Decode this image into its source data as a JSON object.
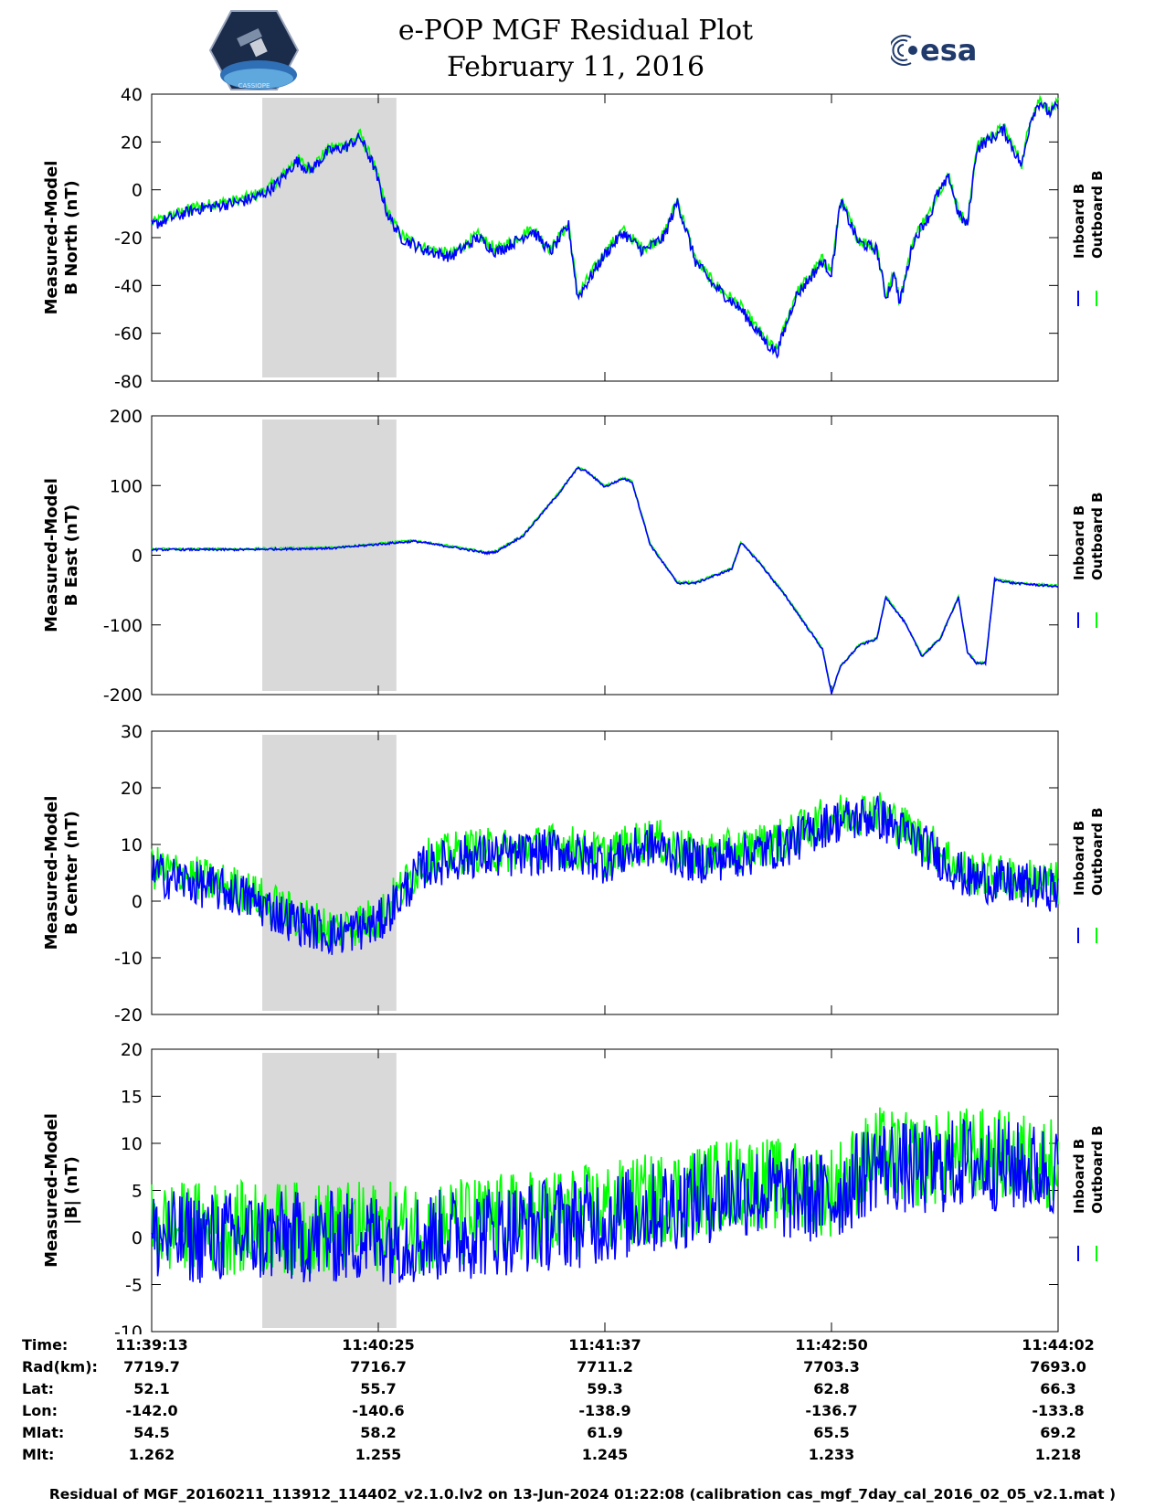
{
  "header": {
    "title": "e-POP MGF Residual Plot",
    "date": "February 11, 2016",
    "logo_left_text": "CASSIOPE",
    "logo_right_text": "esa"
  },
  "colors": {
    "inboard": "#0000ff",
    "outboard": "#00ff00",
    "shade": "#d9d9d9"
  },
  "chart_data": [
    {
      "type": "line",
      "ylabel": [
        "Measured-Model",
        "B North (nT)"
      ],
      "ylim": [
        -80,
        40
      ],
      "yticks": [
        40,
        20,
        0,
        -20,
        -40,
        -60,
        -80
      ],
      "legend": [
        "Inboard B",
        "Outboard B"
      ],
      "legend_placement": "right",
      "shaded_x_range": [
        0.122,
        0.27
      ],
      "noise_amplitude": 2.5,
      "series_x": [
        0,
        0.02,
        0.05,
        0.1,
        0.122,
        0.14,
        0.16,
        0.175,
        0.195,
        0.215,
        0.23,
        0.245,
        0.26,
        0.275,
        0.3,
        0.33,
        0.36,
        0.38,
        0.4,
        0.42,
        0.44,
        0.46,
        0.47,
        0.5,
        0.52,
        0.54,
        0.545,
        0.565,
        0.58,
        0.6,
        0.62,
        0.65,
        0.66,
        0.67,
        0.68,
        0.69,
        0.71,
        0.74,
        0.75,
        0.76,
        0.78,
        0.8,
        0.81,
        0.82,
        0.825,
        0.84,
        0.85,
        0.86,
        0.865,
        0.88,
        0.89,
        0.9,
        0.91,
        0.92,
        0.94,
        0.96,
        0.97,
        0.98,
        0.99,
        1.0
      ],
      "series": [
        {
          "name": "Inboard B",
          "values": [
            -15,
            -12,
            -8,
            -5,
            -2,
            3,
            12,
            8,
            16,
            18,
            22,
            10,
            -10,
            -20,
            -25,
            -28,
            -20,
            -26,
            -22,
            -17,
            -26,
            -15,
            -45,
            -27,
            -18,
            -25,
            -25,
            -20,
            -5,
            -30,
            -40,
            -50,
            -55,
            -60,
            -65,
            -68,
            -45,
            -30,
            -35,
            -5,
            -22,
            -25,
            -45,
            -35,
            -48,
            -22,
            -15,
            -10,
            -3,
            5,
            -10,
            -15,
            17,
            20,
            25,
            10,
            30,
            37,
            32,
            35
          ]
        },
        {
          "name": "Outboard B",
          "values": [
            -14,
            -11,
            -7,
            -4,
            -1,
            4,
            13,
            9,
            17,
            19,
            23,
            11,
            -9,
            -19,
            -24,
            -27,
            -19,
            -25,
            -21,
            -16,
            -25,
            -14,
            -44,
            -26,
            -17,
            -24,
            -24,
            -19,
            -4,
            -29,
            -39,
            -49,
            -54,
            -59,
            -64,
            -67,
            -44,
            -29,
            -34,
            -4,
            -21,
            -24,
            -44,
            -34,
            -47,
            -21,
            -14,
            -9,
            -2,
            6,
            -9,
            -14,
            18,
            21,
            26,
            11,
            31,
            38,
            33,
            36
          ]
        }
      ]
    },
    {
      "type": "line",
      "ylabel": [
        "Measured-Model",
        "B East (nT)"
      ],
      "ylim": [
        -200,
        200
      ],
      "yticks": [
        200,
        100,
        0,
        -100,
        -200
      ],
      "legend": [
        "Inboard B",
        "Outboard B"
      ],
      "legend_placement": "right",
      "shaded_x_range": [
        0.122,
        0.27
      ],
      "noise_amplitude": 1.5,
      "series_x": [
        0,
        0.1,
        0.2,
        0.27,
        0.29,
        0.33,
        0.37,
        0.38,
        0.41,
        0.45,
        0.47,
        0.48,
        0.5,
        0.52,
        0.53,
        0.55,
        0.58,
        0.6,
        0.64,
        0.65,
        0.67,
        0.7,
        0.74,
        0.75,
        0.76,
        0.78,
        0.8,
        0.81,
        0.83,
        0.84,
        0.85,
        0.87,
        0.89,
        0.9,
        0.91,
        0.92,
        0.93,
        0.95,
        0.97,
        1.0
      ],
      "series": [
        {
          "name": "Inboard B",
          "values": [
            8,
            8,
            10,
            18,
            20,
            12,
            3,
            5,
            28,
            90,
            125,
            120,
            98,
            110,
            105,
            15,
            -40,
            -40,
            -20,
            18,
            -10,
            -60,
            -135,
            -198,
            -160,
            -130,
            -120,
            -60,
            -95,
            -120,
            -145,
            -120,
            -60,
            -140,
            -155,
            -155,
            -35,
            -40,
            -42,
            -45
          ]
        },
        {
          "name": "Outboard B",
          "values": [
            9,
            9,
            11,
            19,
            21,
            13,
            4,
            6,
            29,
            91,
            126,
            121,
            99,
            111,
            106,
            16,
            -39,
            -39,
            -19,
            19,
            -9,
            -59,
            -134,
            -197,
            -159,
            -129,
            -119,
            -59,
            -94,
            -119,
            -144,
            -119,
            -59,
            -139,
            -154,
            -154,
            -34,
            -39,
            -41,
            -44
          ]
        }
      ]
    },
    {
      "type": "line",
      "ylabel": [
        "Measured-Model",
        "B Center (nT)"
      ],
      "ylim": [
        -20,
        30
      ],
      "yticks": [
        30,
        20,
        10,
        0,
        -10,
        -20
      ],
      "legend": [
        "Inboard B",
        "Outboard B"
      ],
      "legend_placement": "right",
      "shaded_x_range": [
        0.122,
        0.27
      ],
      "noise_amplitude": 4,
      "series_x": [
        0,
        0.05,
        0.1,
        0.15,
        0.2,
        0.25,
        0.27,
        0.3,
        0.35,
        0.4,
        0.45,
        0.5,
        0.55,
        0.6,
        0.65,
        0.7,
        0.75,
        0.8,
        0.85,
        0.9,
        0.95,
        1.0
      ],
      "series": [
        {
          "name": "Inboard B",
          "values": [
            5,
            3,
            1,
            -3,
            -6,
            -4,
            0,
            6,
            8,
            8,
            9,
            7,
            10,
            7,
            8,
            10,
            14,
            15,
            10,
            4,
            3,
            2
          ]
        },
        {
          "name": "Outboard B",
          "values": [
            6,
            4,
            2,
            -2,
            -5,
            -3,
            1,
            7,
            9,
            9,
            10,
            8,
            11,
            8,
            9,
            11,
            15,
            16,
            11,
            5,
            4,
            3
          ]
        }
      ]
    },
    {
      "type": "line",
      "ylabel": [
        "Measured-Model",
        "|B| (nT)"
      ],
      "ylim": [
        -10,
        20
      ],
      "yticks": [
        20,
        15,
        10,
        5,
        0,
        -5,
        -10
      ],
      "legend": [
        "Inboard B",
        "Outboard B"
      ],
      "legend_placement": "right",
      "shaded_x_range": [
        0.122,
        0.27
      ],
      "noise_amplitude": 5,
      "series_x": [
        0,
        0.1,
        0.2,
        0.3,
        0.4,
        0.5,
        0.6,
        0.65,
        0.75,
        0.8,
        0.85,
        0.9,
        1.0
      ],
      "series": [
        {
          "name": "Inboard B",
          "values": [
            0,
            0,
            0,
            0,
            1,
            2,
            4,
            5,
            4,
            8,
            7,
            8,
            7
          ]
        },
        {
          "name": "Outboard B",
          "values": [
            1,
            1,
            1,
            1,
            2,
            3,
            5,
            6,
            5,
            9,
            8,
            9,
            8
          ]
        }
      ]
    }
  ],
  "info_table": {
    "rows": [
      {
        "label": "Time:",
        "values": [
          "11:39:13",
          "11:40:25",
          "11:41:37",
          "11:42:50",
          "11:44:02"
        ]
      },
      {
        "label": "Rad(km):",
        "values": [
          "7719.7",
          "7716.7",
          "7711.2",
          "7703.3",
          "7693.0"
        ]
      },
      {
        "label": "Lat:",
        "values": [
          "52.1",
          "55.7",
          "59.3",
          "62.8",
          "66.3"
        ]
      },
      {
        "label": "Lon:",
        "values": [
          "-142.0",
          "-140.6",
          "-138.9",
          "-136.7",
          "-133.8"
        ]
      },
      {
        "label": "Mlat:",
        "values": [
          "54.5",
          "58.2",
          "61.9",
          "65.5",
          "69.2"
        ]
      },
      {
        "label": "Mlt:",
        "values": [
          "1.262",
          "1.255",
          "1.245",
          "1.233",
          "1.218"
        ]
      }
    ]
  },
  "footer": "Residual of MGF_20160211_113912_114402_v2.1.0.lv2 on 13-Jun-2024 01:22:08 (calibration cas_mgf_7day_cal_2016_02_05_v2.1.mat )"
}
